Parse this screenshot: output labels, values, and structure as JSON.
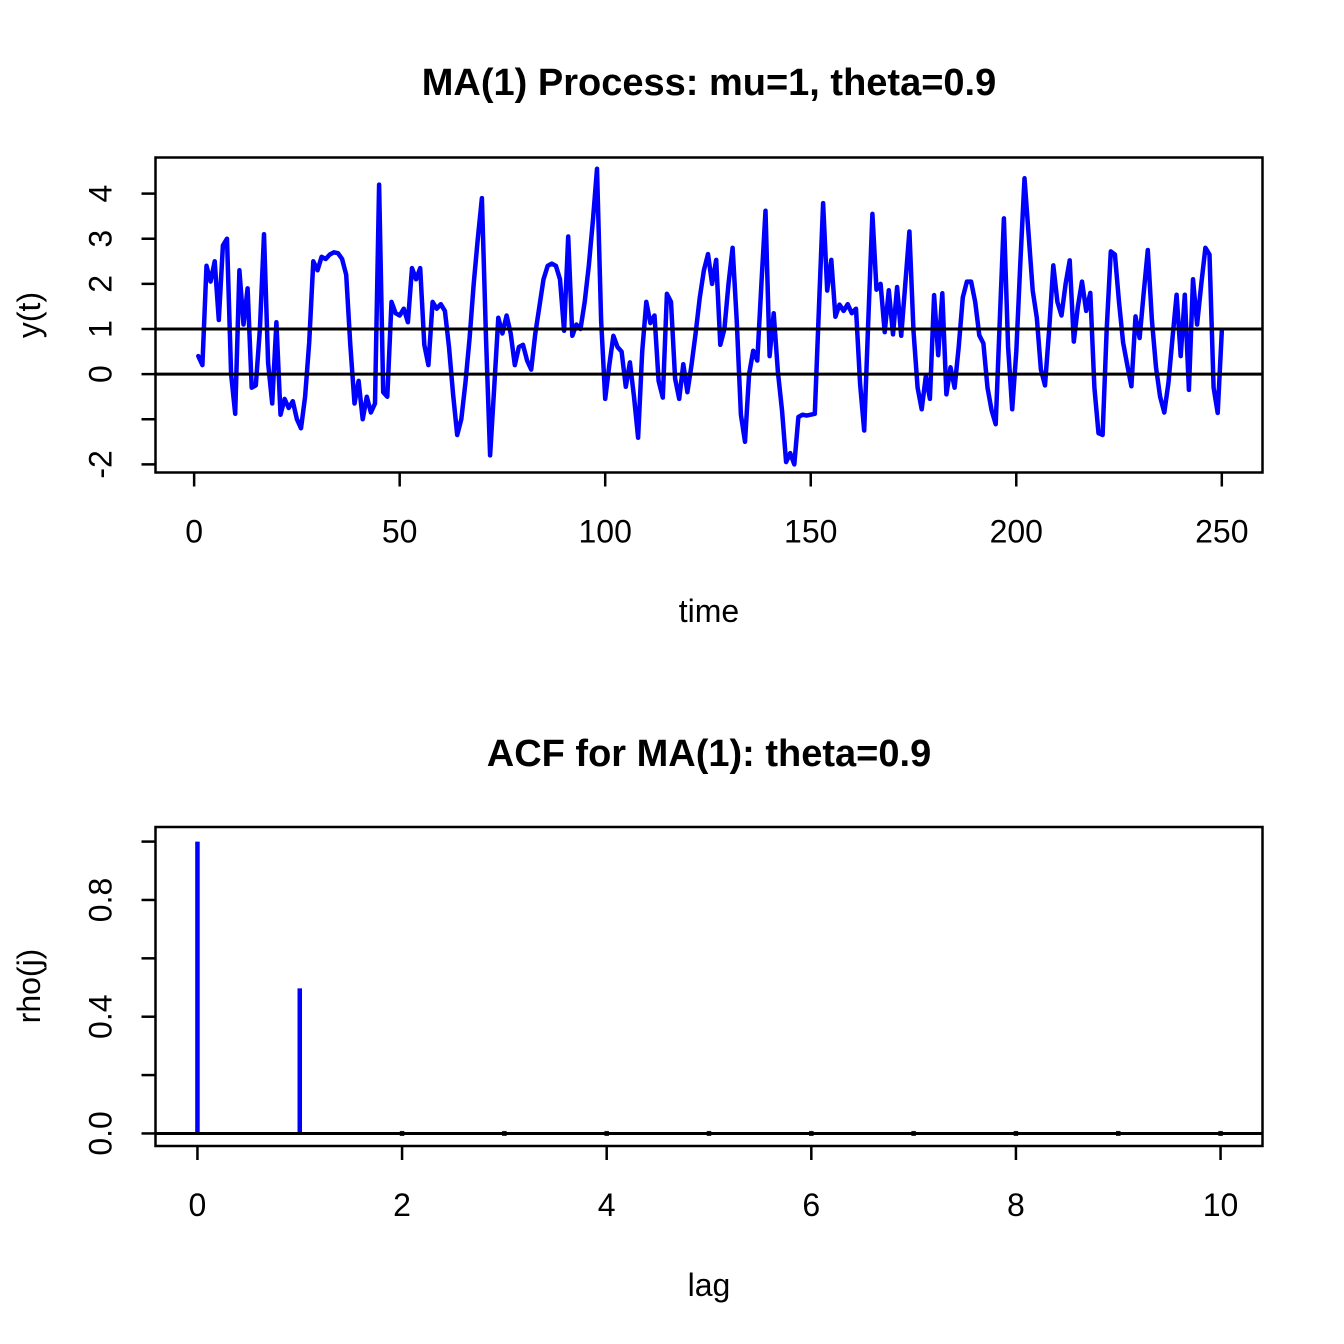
{
  "colors": {
    "series": "#0000ff",
    "axis": "#000000",
    "background": "#ffffff"
  },
  "chart_data": [
    {
      "type": "line",
      "title": "MA(1) Process: mu=1, theta=0.9",
      "xlabel": "time",
      "ylabel": "y(t)",
      "x_ticks": [
        0,
        50,
        100,
        150,
        200,
        250
      ],
      "x_tick_labels": [
        "0",
        "50",
        "100",
        "150",
        "200",
        "250"
      ],
      "y_ticks": [
        -2,
        -1,
        0,
        1,
        2,
        3,
        4
      ],
      "y_tick_labels": [
        "-2",
        "",
        "0",
        "1",
        "2",
        "3",
        "4"
      ],
      "x_range": [
        -9.4,
        259.9
      ],
      "y_range": [
        -2.18,
        4.8
      ],
      "reference_lines_y": [
        0,
        1
      ],
      "line_color": "#0000ff",
      "x_start": 1,
      "x_step": 1,
      "note": "series values digitized from plot (approximate)",
      "values": [
        0.4,
        0.2,
        2.4,
        2.05,
        2.5,
        1.2,
        2.85,
        3.0,
        0.0,
        -0.88,
        2.3,
        1.1,
        1.9,
        -0.3,
        -0.25,
        1.0,
        3.1,
        0.25,
        -0.65,
        1.15,
        -0.9,
        -0.55,
        -0.75,
        -0.6,
        -1.0,
        -1.2,
        -0.5,
        0.7,
        2.5,
        2.3,
        2.6,
        2.55,
        2.65,
        2.7,
        2.68,
        2.55,
        2.2,
        0.65,
        -0.65,
        -0.15,
        -1.0,
        -0.5,
        -0.85,
        -0.65,
        4.2,
        -0.4,
        -0.5,
        1.6,
        1.35,
        1.3,
        1.45,
        1.15,
        2.35,
        2.1,
        2.35,
        0.65,
        0.2,
        1.6,
        1.45,
        1.55,
        1.4,
        0.6,
        -0.45,
        -1.35,
        -1.0,
        -0.2,
        0.8,
        2.0,
        3.0,
        3.9,
        0.8,
        -1.8,
        -0.3,
        1.25,
        0.9,
        1.3,
        0.9,
        0.2,
        0.6,
        0.65,
        0.3,
        0.1,
        0.9,
        1.5,
        2.1,
        2.4,
        2.45,
        2.4,
        2.1,
        0.96,
        3.05,
        0.85,
        1.1,
        1.0,
        1.6,
        2.4,
        3.4,
        4.55,
        1.2,
        -0.55,
        0.2,
        0.85,
        0.6,
        0.5,
        -0.28,
        0.26,
        -0.5,
        -1.41,
        0.5,
        1.6,
        1.13,
        1.3,
        -0.15,
        -0.52,
        1.78,
        1.6,
        -0.1,
        -0.55,
        0.22,
        -0.4,
        0.2,
        0.9,
        1.7,
        2.3,
        2.66,
        2.0,
        2.53,
        0.65,
        1.0,
        2.0,
        2.8,
        1.2,
        -0.9,
        -1.5,
        0.0,
        0.52,
        0.3,
        2.0,
        3.62,
        0.4,
        1.35,
        0.05,
        -0.8,
        -1.95,
        -1.75,
        -2.0,
        -0.95,
        -0.9,
        -0.92,
        -0.9,
        -0.88,
        1.5,
        3.79,
        1.85,
        2.53,
        1.27,
        1.54,
        1.4,
        1.55,
        1.35,
        1.45,
        -0.22,
        -1.25,
        1.2,
        3.55,
        1.87,
        2.0,
        0.93,
        1.86,
        0.88,
        1.93,
        0.85,
        2.0,
        3.16,
        0.95,
        -0.3,
        -0.78,
        -0.05,
        -0.55,
        1.75,
        0.42,
        1.79,
        -0.45,
        0.15,
        -0.3,
        0.6,
        1.7,
        2.05,
        2.05,
        1.6,
        0.86,
        0.68,
        -0.3,
        -0.8,
        -1.11,
        1.2,
        3.45,
        0.6,
        -0.78,
        0.5,
        2.5,
        4.34,
        3.1,
        1.85,
        1.25,
        0.1,
        -0.25,
        1.0,
        2.41,
        1.6,
        1.3,
        2.0,
        2.52,
        0.72,
        1.5,
        2.05,
        1.4,
        1.8,
        -0.3,
        -1.31,
        -1.35,
        1.0,
        2.72,
        2.65,
        1.6,
        0.7,
        0.2,
        -0.27,
        1.28,
        0.8,
        1.8,
        2.75,
        1.2,
        0.15,
        -0.5,
        -0.85,
        -0.2,
        0.8,
        1.76,
        0.4,
        1.76,
        -0.35,
        2.1,
        1.1,
        2.0,
        2.8,
        2.65,
        -0.3,
        -0.86,
        0.95
      ]
    },
    {
      "type": "spike",
      "title": "ACF for MA(1): theta=0.9",
      "xlabel": "lag",
      "ylabel": "rho(j)",
      "x_ticks": [
        0,
        2,
        4,
        6,
        8,
        10
      ],
      "x_tick_labels": [
        "0",
        "2",
        "4",
        "6",
        "8",
        "10"
      ],
      "y_ticks": [
        0,
        0.2,
        0.4,
        0.6,
        0.8,
        1.0
      ],
      "y_tick_labels": [
        "0.0",
        "",
        "0.4",
        "",
        "0.8",
        ""
      ],
      "x_range": [
        -0.41,
        10.41
      ],
      "y_range": [
        -0.043,
        1.05
      ],
      "reference_lines_y": [
        0
      ],
      "line_color": "#0000ff",
      "lags": [
        0,
        1,
        2,
        3,
        4,
        5,
        6,
        7,
        8,
        9,
        10
      ],
      "values": [
        1.0,
        0.497,
        0,
        0,
        0,
        0,
        0,
        0,
        0,
        0,
        0
      ]
    }
  ]
}
